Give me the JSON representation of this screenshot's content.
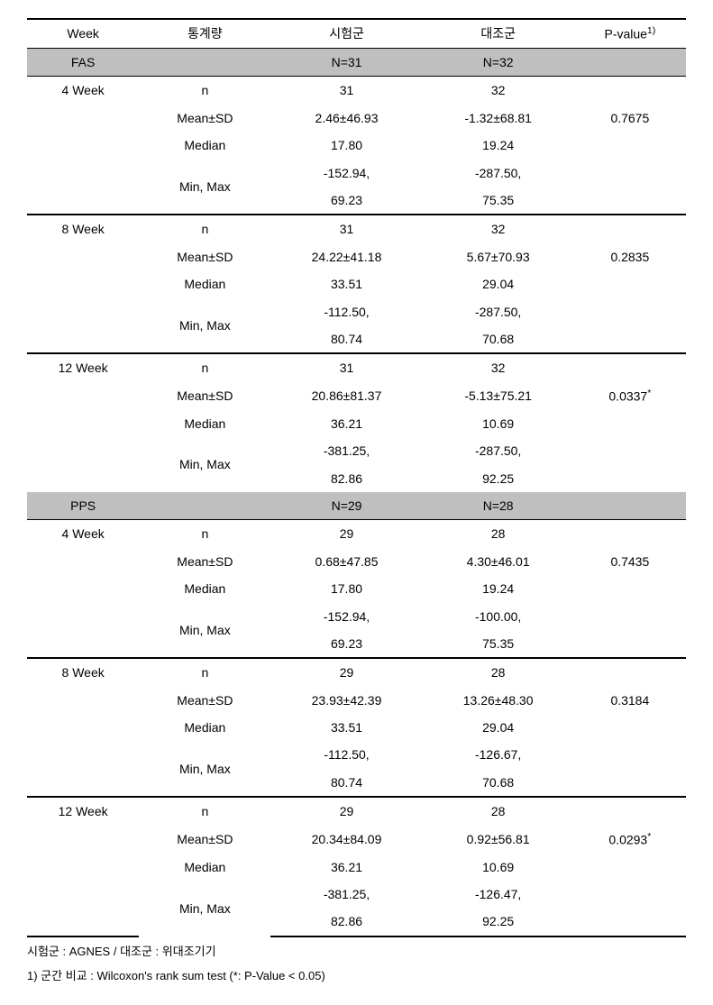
{
  "header": {
    "week": "Week",
    "stat": "통계량",
    "g1": "시험군",
    "g2": "대조군",
    "pvalue": "P-value",
    "pvalue_sup": "1)"
  },
  "sections": [
    {
      "name": "FAS",
      "n_g1": "N=31",
      "n_g2": "N=32",
      "blocks": [
        {
          "week": "4 Week",
          "rows": {
            "n_g1": "31",
            "n_g2": "32",
            "mean_g1": "2.46±46.93",
            "mean_g2": "-1.32±68.81",
            "median_g1": "17.80",
            "median_g2": "19.24",
            "min_g1": "-152.94,",
            "min_g2": "-287.50,",
            "max_g1": "69.23",
            "max_g2": "75.35"
          },
          "pvalue": "0.7675",
          "star": ""
        },
        {
          "week": "8 Week",
          "rows": {
            "n_g1": "31",
            "n_g2": "32",
            "mean_g1": "24.22±41.18",
            "mean_g2": "5.67±70.93",
            "median_g1": "33.51",
            "median_g2": "29.04",
            "min_g1": "-112.50,",
            "min_g2": "-287.50,",
            "max_g1": "80.74",
            "max_g2": "70.68"
          },
          "pvalue": "0.2835",
          "star": ""
        },
        {
          "week": "12 Week",
          "rows": {
            "n_g1": "31",
            "n_g2": "32",
            "mean_g1": "20.86±81.37",
            "mean_g2": "-5.13±75.21",
            "median_g1": "36.21",
            "median_g2": "10.69",
            "min_g1": "-381.25,",
            "min_g2": "-287.50,",
            "max_g1": "82.86",
            "max_g2": "92.25"
          },
          "pvalue": "0.0337",
          "star": "*"
        }
      ]
    },
    {
      "name": "PPS",
      "n_g1": "N=29",
      "n_g2": "N=28",
      "blocks": [
        {
          "week": "4 Week",
          "rows": {
            "n_g1": "29",
            "n_g2": "28",
            "mean_g1": "0.68±47.85",
            "mean_g2": "4.30±46.01",
            "median_g1": "17.80",
            "median_g2": "19.24",
            "min_g1": "-152.94,",
            "min_g2": "-100.00,",
            "max_g1": "69.23",
            "max_g2": "75.35"
          },
          "pvalue": "0.7435",
          "star": ""
        },
        {
          "week": "8 Week",
          "rows": {
            "n_g1": "29",
            "n_g2": "28",
            "mean_g1": "23.93±42.39",
            "mean_g2": "13.26±48.30",
            "median_g1": "33.51",
            "median_g2": "29.04",
            "min_g1": "-112.50,",
            "min_g2": "-126.67,",
            "max_g1": "80.74",
            "max_g2": "70.68"
          },
          "pvalue": "0.3184",
          "star": ""
        },
        {
          "week": "12 Week",
          "rows": {
            "n_g1": "29",
            "n_g2": "28",
            "mean_g1": "20.34±84.09",
            "mean_g2": "0.92±56.81",
            "median_g1": "36.21",
            "median_g2": "10.69",
            "min_g1": "-381.25,",
            "min_g2": "-126.47,",
            "max_g1": "82.86",
            "max_g2": "92.25"
          },
          "pvalue": "0.0293",
          "star": "*"
        }
      ]
    }
  ],
  "stat_labels": {
    "n": "n",
    "mean": "Mean±SD",
    "median": "Median",
    "minmax": "Min, Max"
  },
  "footnotes": {
    "line1": "시험군 : AGNES / 대조군 : 위대조기기",
    "line2": "1) 군간 비교 : Wilcoxon's rank sum test (*: P-Value < 0.05)"
  },
  "style": {
    "section_bg": "#bfbfbf",
    "border_color": "#000000",
    "font_size_pt": 14
  }
}
